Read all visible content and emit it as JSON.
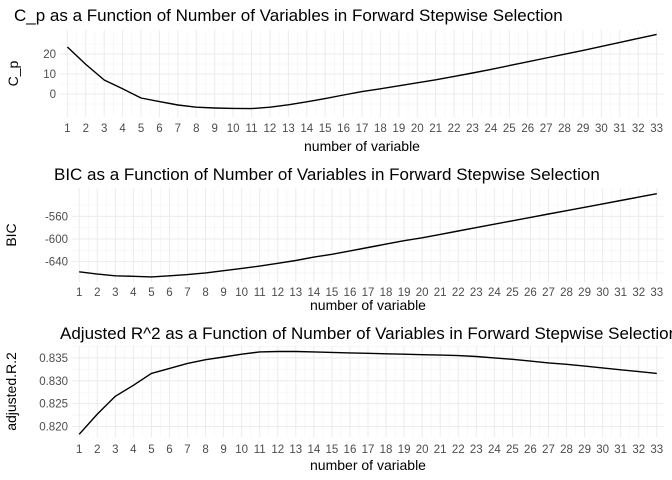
{
  "chart_data": [
    {
      "type": "line",
      "title": "C_p as a Function of Number of Variables in Forward Stepwise Selection",
      "xlabel": "number of variable",
      "ylabel": "C_p",
      "x": [
        1,
        2,
        3,
        4,
        5,
        6,
        7,
        8,
        9,
        10,
        11,
        12,
        13,
        14,
        15,
        16,
        17,
        18,
        19,
        20,
        21,
        22,
        23,
        24,
        25,
        26,
        27,
        28,
        29,
        30,
        31,
        32,
        33
      ],
      "y": [
        23.5,
        14.8,
        7.0,
        2.6,
        -2.0,
        -3.8,
        -5.5,
        -6.6,
        -7.0,
        -7.2,
        -7.3,
        -6.6,
        -5.4,
        -3.9,
        -2.3,
        -0.5,
        1.2,
        2.6,
        4.1,
        5.6,
        7.1,
        8.8,
        10.5,
        12.3,
        14.2,
        16.1,
        18.0,
        19.9,
        21.8,
        23.8,
        25.8,
        27.8,
        29.8
      ],
      "yticks": [
        0,
        10,
        20
      ],
      "ytick_labels": [
        "0",
        "10",
        "20"
      ],
      "xlim": [
        0.6,
        33.4
      ],
      "ylim": [
        -11.5,
        32
      ],
      "grid": true
    },
    {
      "type": "line",
      "title": "BIC as a Function of Number of Variables in Forward Stepwise Selection",
      "xlabel": "number of variable",
      "ylabel": "BIC",
      "x": [
        1,
        2,
        3,
        4,
        5,
        6,
        7,
        8,
        9,
        10,
        11,
        12,
        13,
        14,
        15,
        16,
        17,
        18,
        19,
        20,
        21,
        22,
        23,
        24,
        25,
        26,
        27,
        28,
        29,
        30,
        31,
        32,
        33
      ],
      "y": [
        -658,
        -662,
        -665,
        -666,
        -667,
        -665,
        -663,
        -660,
        -656,
        -652,
        -648,
        -643,
        -638,
        -632,
        -627,
        -621,
        -615,
        -609,
        -603,
        -598,
        -592,
        -586,
        -580,
        -574,
        -568,
        -562,
        -556,
        -550,
        -544,
        -538,
        -532,
        -526,
        -520
      ],
      "yticks": [
        -640,
        -600,
        -560
      ],
      "ytick_labels": [
        "-640",
        "-600",
        "-560"
      ],
      "xlim": [
        0.6,
        33.4
      ],
      "ylim": [
        -676,
        -510
      ],
      "grid": true
    },
    {
      "type": "line",
      "title": "Adjusted R^2 as a Function of Number of Variables in Forward Stepwise Selection",
      "xlabel": "number of variable",
      "ylabel": "adjusted.R.2",
      "x": [
        1,
        2,
        3,
        4,
        5,
        6,
        7,
        8,
        9,
        10,
        11,
        12,
        13,
        14,
        15,
        16,
        17,
        18,
        19,
        20,
        21,
        22,
        23,
        24,
        25,
        26,
        27,
        28,
        29,
        30,
        31,
        32,
        33
      ],
      "y": [
        0.8183,
        0.8227,
        0.8266,
        0.829,
        0.8316,
        0.8327,
        0.8338,
        0.8346,
        0.8352,
        0.8358,
        0.8363,
        0.8364,
        0.8364,
        0.8363,
        0.8362,
        0.8361,
        0.836,
        0.8359,
        0.8358,
        0.8357,
        0.8356,
        0.8355,
        0.8353,
        0.835,
        0.8347,
        0.8343,
        0.8339,
        0.8336,
        0.8332,
        0.8328,
        0.8324,
        0.832,
        0.8316
      ],
      "yticks": [
        0.82,
        0.825,
        0.83,
        0.835
      ],
      "ytick_labels": [
        "0.820",
        "0.825",
        "0.830",
        "0.835"
      ],
      "xlim": [
        0.6,
        33.4
      ],
      "ylim": [
        0.8177,
        0.8376
      ],
      "grid": true
    }
  ]
}
